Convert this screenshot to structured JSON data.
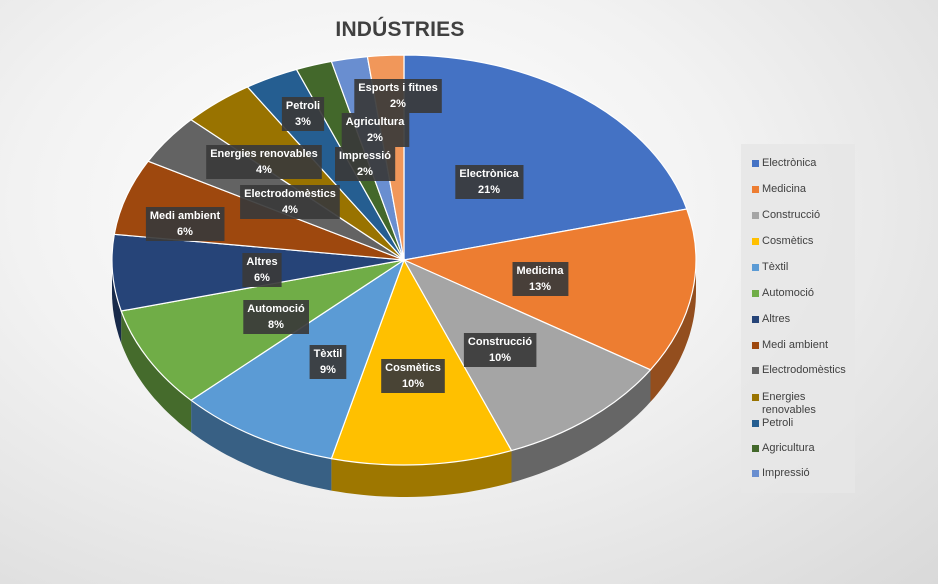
{
  "chart_data": {
    "type": "pie",
    "title": "INDÚSTRIES",
    "legend_position": "right",
    "slices": [
      {
        "label": "Electrònica",
        "value": 21,
        "pct_label": "21%",
        "color": "#4472C4"
      },
      {
        "label": "Medicina",
        "value": 13,
        "pct_label": "13%",
        "color": "#ED7D31"
      },
      {
        "label": "Construcció",
        "value": 10,
        "pct_label": "10%",
        "color": "#A5A5A5"
      },
      {
        "label": "Cosmètics",
        "value": 10,
        "pct_label": "10%",
        "color": "#FFC000"
      },
      {
        "label": "Tèxtil",
        "value": 9,
        "pct_label": "9%",
        "color": "#5B9BD5"
      },
      {
        "label": "Automoció",
        "value": 8,
        "pct_label": "8%",
        "color": "#70AD47"
      },
      {
        "label": "Altres",
        "value": 6,
        "pct_label": "6%",
        "color": "#264478"
      },
      {
        "label": "Medi ambient",
        "value": 6,
        "pct_label": "6%",
        "color": "#9E480E"
      },
      {
        "label": "Electrodomèstics",
        "value": 4,
        "pct_label": "4%",
        "color": "#636363"
      },
      {
        "label": "Energies renovables",
        "value": 4,
        "pct_label": "4%",
        "color": "#997300"
      },
      {
        "label": "Petroli",
        "value": 3,
        "pct_label": "3%",
        "color": "#255E91"
      },
      {
        "label": "Agricultura",
        "value": 2,
        "pct_label": "2%",
        "color": "#43682B"
      },
      {
        "label": "Impressió",
        "value": 2,
        "pct_label": "2%",
        "color": "#698ED0"
      },
      {
        "label": "Esports i fitnes",
        "value": 2,
        "pct_label": "2%",
        "color": "#F1975A"
      }
    ],
    "legend_visible_count": 13
  }
}
